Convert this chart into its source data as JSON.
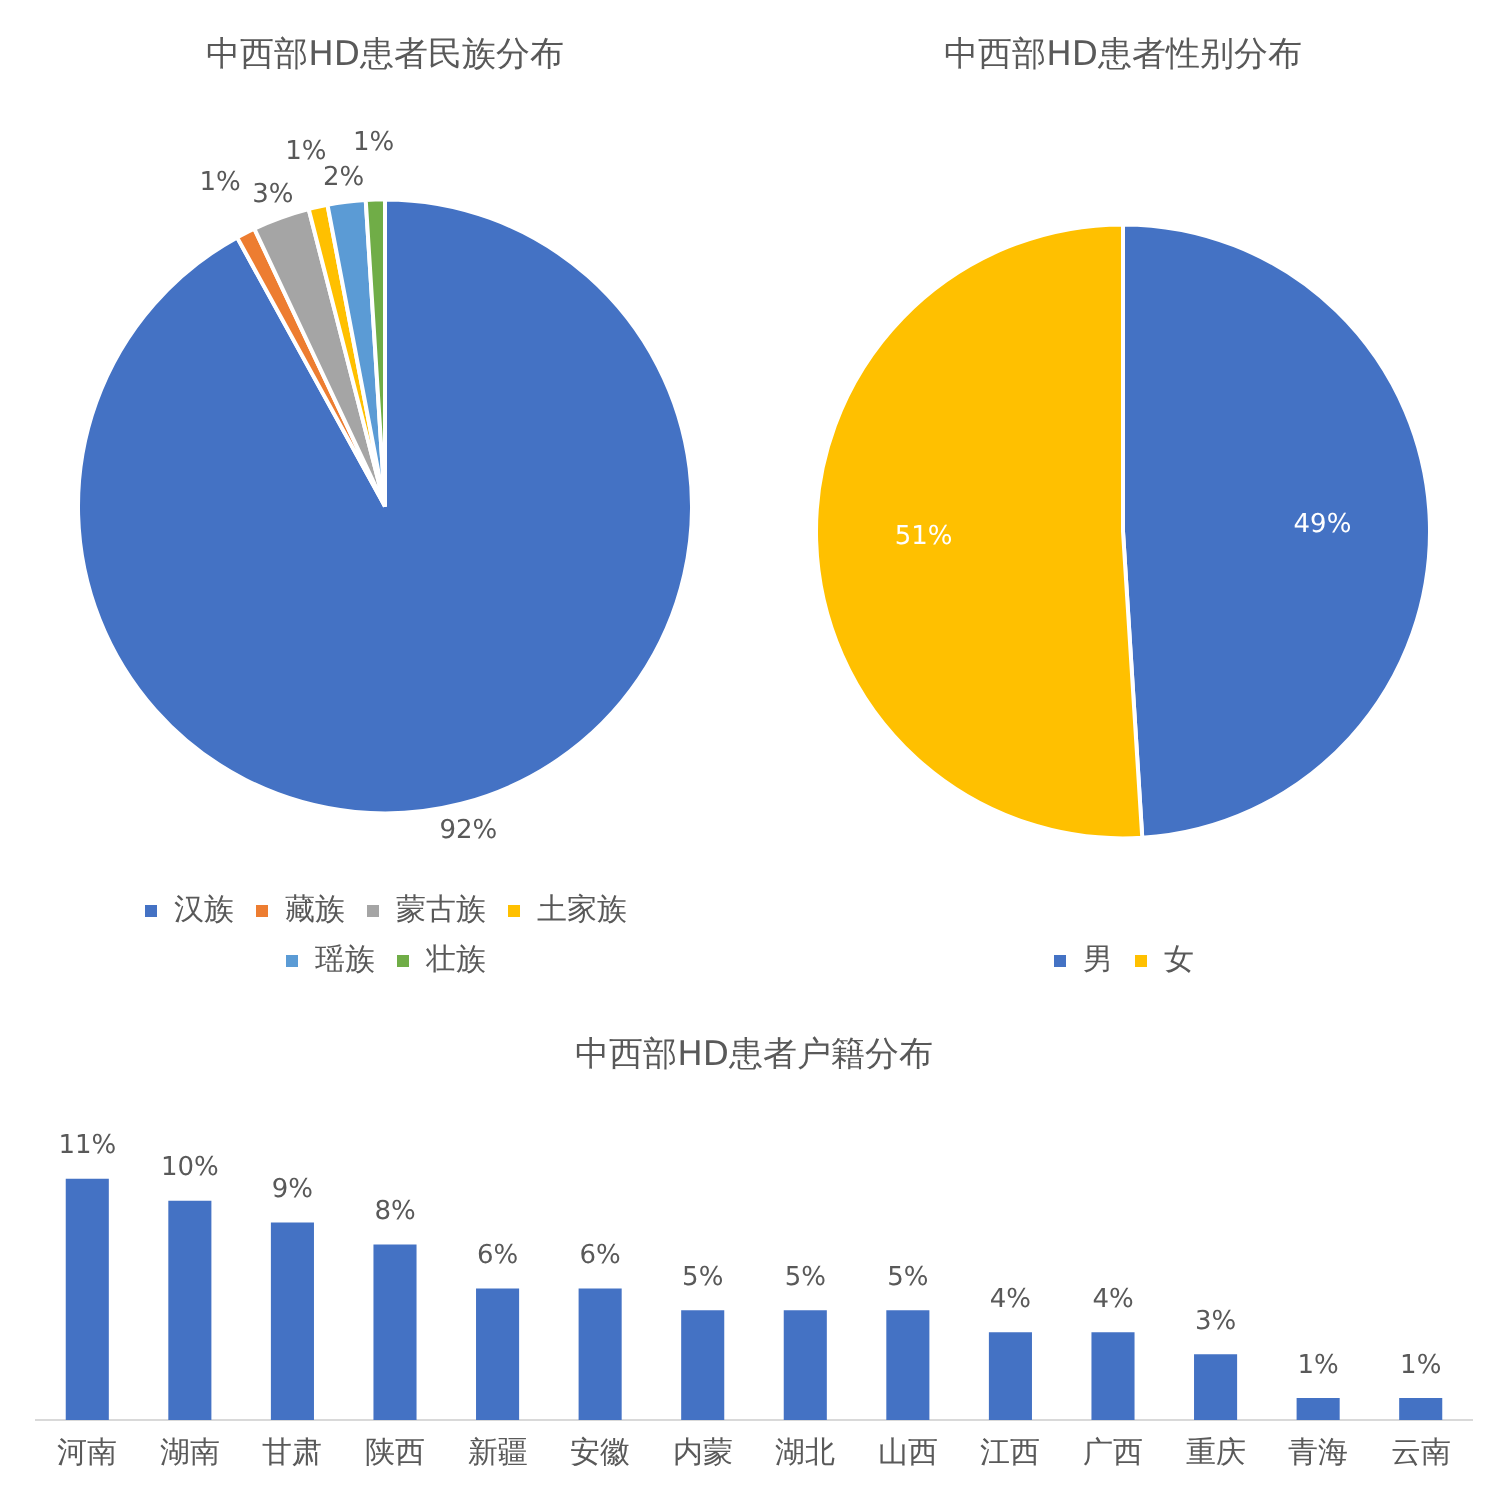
{
  "chart_data": [
    {
      "type": "pie",
      "title": "中西部HD患者民族分布",
      "categories": [
        "汉族",
        "藏族",
        "蒙古族",
        "土家族",
        "瑶族",
        "壮族"
      ],
      "values": [
        92,
        1,
        3,
        1,
        2,
        1
      ],
      "colors": [
        "#4472c4",
        "#ed7d31",
        "#a5a5a5",
        "#ffc000",
        "#5b9bd5",
        "#70ad47"
      ],
      "value_labels": [
        "92%",
        "1%",
        "3%",
        "1%",
        "2%",
        "1%"
      ],
      "legend": "bottom"
    },
    {
      "type": "pie",
      "title": "中西部HD患者性别分布",
      "categories": [
        "男",
        "女"
      ],
      "values": [
        49,
        51
      ],
      "colors": [
        "#4472c4",
        "#ffc000"
      ],
      "value_labels": [
        "49%",
        "51%"
      ],
      "legend": "bottom"
    },
    {
      "type": "bar",
      "title": "中西部HD患者户籍分布",
      "tick_labels": "x",
      "categories": [
        "河南",
        "湖南",
        "甘肃",
        "陕西",
        "新疆",
        "安徽",
        "内蒙",
        "湖北",
        "山西",
        "江西",
        "广西",
        "重庆",
        "青海",
        "云南"
      ],
      "values": [
        11,
        10,
        9,
        8,
        6,
        6,
        5,
        5,
        5,
        4,
        4,
        3,
        1,
        1
      ],
      "color": "#4472c4",
      "value_labels": [
        "11%",
        "10%",
        "9%",
        "8%",
        "6%",
        "6%",
        "5%",
        "5%",
        "5%",
        "4%",
        "4%",
        "3%",
        "1%",
        "1%"
      ],
      "grid": false,
      "legend": false
    }
  ]
}
